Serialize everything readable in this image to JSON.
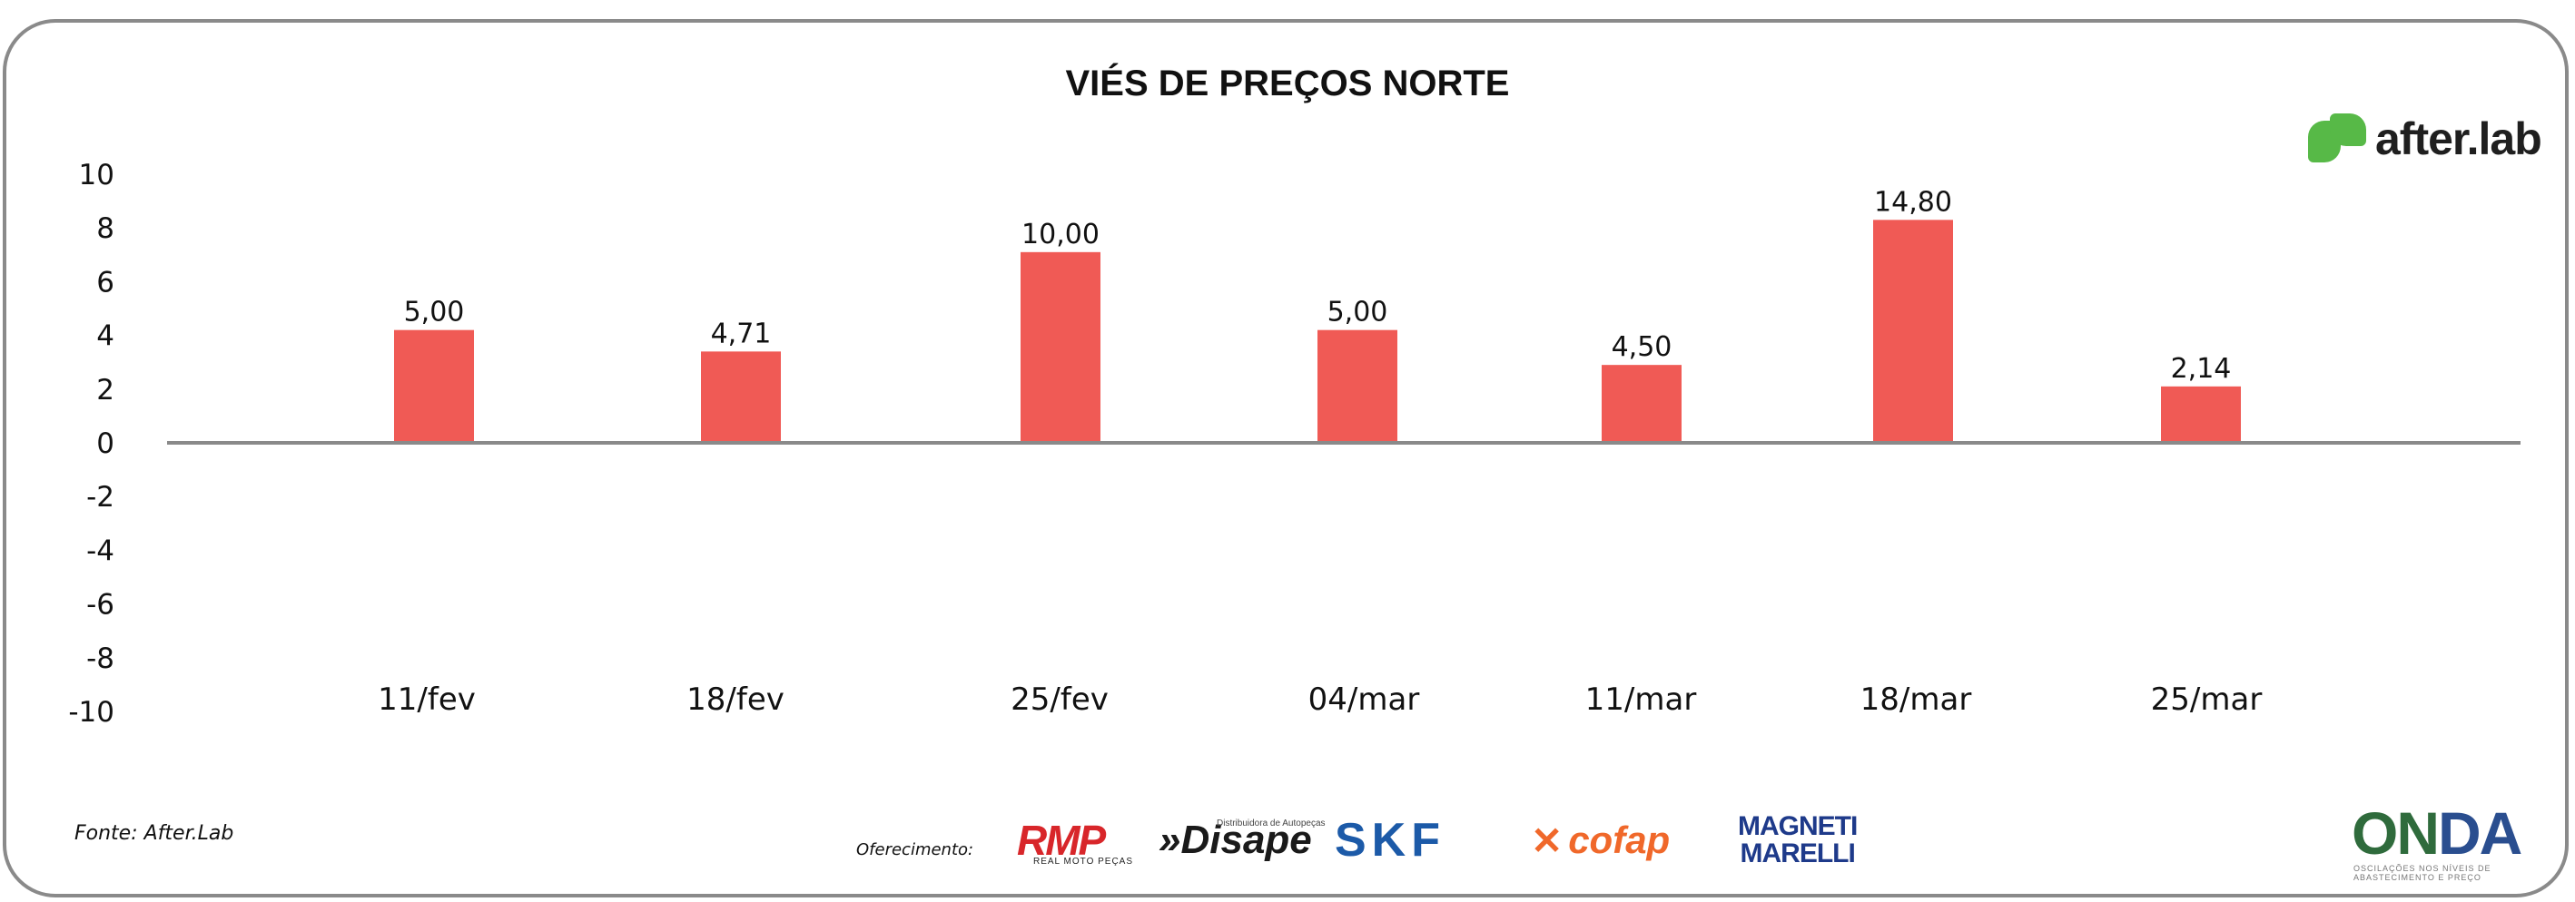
{
  "chart_data": {
    "type": "bar",
    "title": "VIÉS DE PREÇOS NORTE",
    "xlabel": "",
    "ylabel": "",
    "categories": [
      "11/fev",
      "18/fev",
      "25/fev",
      "04/mar",
      "11/mar",
      "18/mar",
      "25/mar"
    ],
    "values": [
      5.0,
      4.71,
      10.0,
      5.0,
      4.5,
      14.8,
      2.14
    ],
    "bar_heights_on_axis": [
      4.2,
      3.4,
      7.1,
      4.2,
      2.9,
      8.3,
      2.1
    ],
    "data_labels": [
      "5,00",
      "4,71",
      "10,00",
      "5,00",
      "4,50",
      "14,80",
      "2,14"
    ],
    "yticks": [
      "10",
      "8",
      "6",
      "4",
      "2",
      "0",
      "-2",
      "-4",
      "-6",
      "-8",
      "-10"
    ],
    "ylim": [
      -10,
      10
    ],
    "grid": false,
    "legend": "none",
    "bar_color": "#f05a55",
    "axis_color": "#8a8a8a"
  },
  "footer": {
    "source": "Fonte: After.Lab",
    "offer_label": "Oferecimento:"
  },
  "logos": {
    "afterlab": "after.lab",
    "rmp": "RMP",
    "rmp_sub": "REAL MOTO PEÇAS",
    "disape": "»Disape",
    "disape_sub": "Distribuidora de Autopeças",
    "skf": "SKF",
    "cofap": "cofap",
    "magneti_line1": "MAGNETI",
    "magneti_line2": "MARELLI",
    "onda": "ONDA",
    "onda_sub": "OSCILAÇÕES NOS NÍVEIS DE ABASTECIMENTO E PREÇO"
  }
}
